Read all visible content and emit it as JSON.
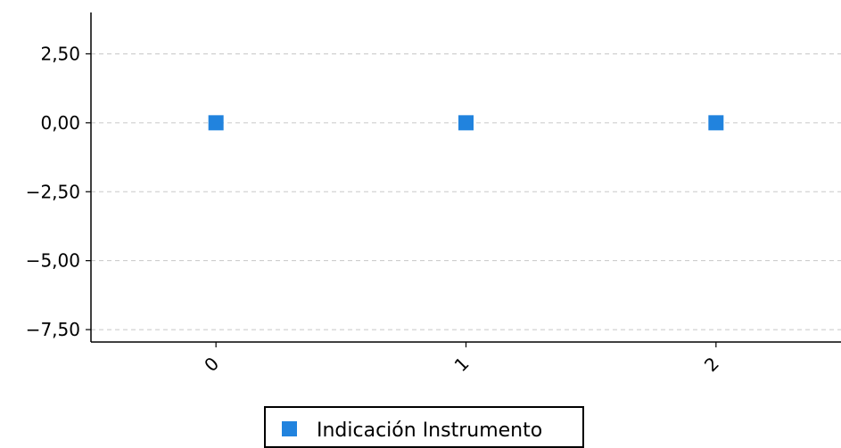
{
  "chart_data": {
    "type": "scatter",
    "x_categories": [
      "0",
      "1",
      "2"
    ],
    "series": [
      {
        "name": "Indicación Instrumento",
        "color": "#2183de",
        "marker": "square",
        "x": [
          0,
          1,
          2
        ],
        "y": [
          0,
          0,
          0
        ]
      }
    ],
    "y_ticks": [
      2.5,
      0,
      -2.5,
      -5,
      -7.5
    ],
    "y_tick_labels": [
      "2,50",
      "0,00",
      "−2,50",
      "−5,00",
      "−7,50"
    ],
    "ylim": [
      -7.95,
      4.0
    ],
    "xlim": [
      -0.5,
      2.5
    ],
    "grid": {
      "y": true,
      "style": "dashed",
      "color": "#c8c8c8"
    },
    "legend": {
      "placement": "bottom-center",
      "label": "Indicación Instrumento"
    },
    "xlabel": "",
    "ylabel": "",
    "title": ""
  }
}
